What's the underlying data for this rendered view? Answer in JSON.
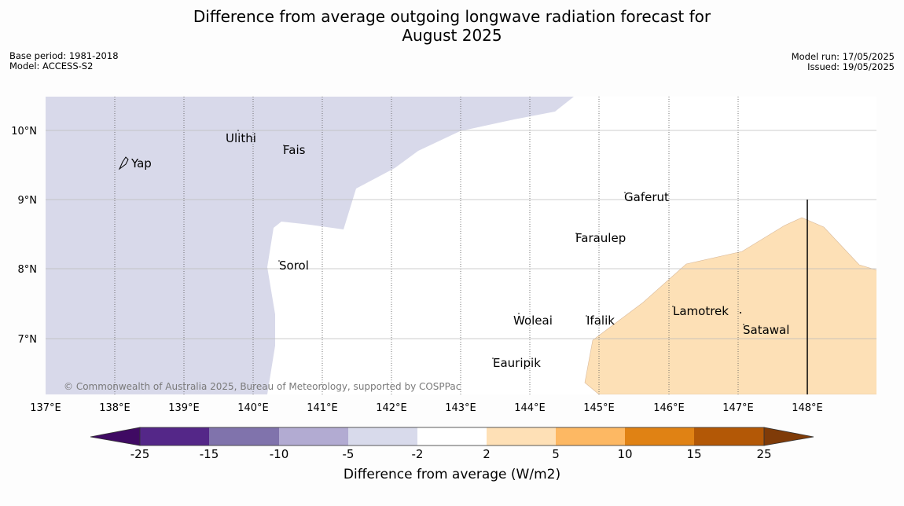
{
  "header": {
    "title_line1": "Difference from average outgoing longwave radiation forecast for",
    "title_line2": "August 2025",
    "base_period": "Base period: 1981-2018",
    "model": "Model: ACCESS-S2",
    "model_run": "Model run: 17/05/2025",
    "issued": "Issued: 19/05/2025"
  },
  "map": {
    "lat_labels": [
      "10°N",
      "9°N",
      "8°N",
      "7°N"
    ],
    "lon_labels": [
      "137°E",
      "138°E",
      "139°E",
      "140°E",
      "141°E",
      "142°E",
      "143°E",
      "144°E",
      "145°E",
      "146°E",
      "147°E",
      "148°E"
    ],
    "places": [
      "Ulithi",
      "Fais",
      "Yap",
      "Gaferut",
      "Faraulep",
      "Sorol",
      "Lamotrek",
      "Woleai",
      "Ifalik",
      "Satawal",
      "Eauripik"
    ],
    "attribution": "© Commonwealth of Australia 2025, Bureau of Meteorology, supported by COSPPac",
    "colors": {
      "region_negative": "#d8d9ea",
      "region_positive": "#fde0b6"
    }
  },
  "colorbar": {
    "title": "Difference from average (W/m2)",
    "ticks": [
      "-25",
      "-15",
      "-10",
      "-5",
      "-2",
      "2",
      "5",
      "10",
      "15",
      "25"
    ],
    "colors": [
      "#3f0a63",
      "#542788",
      "#8073ac",
      "#b2abd2",
      "#d8daeb",
      "#ffffff",
      "#fee0b6",
      "#fdb863",
      "#e08214",
      "#b35806",
      "#7f3b08"
    ]
  }
}
